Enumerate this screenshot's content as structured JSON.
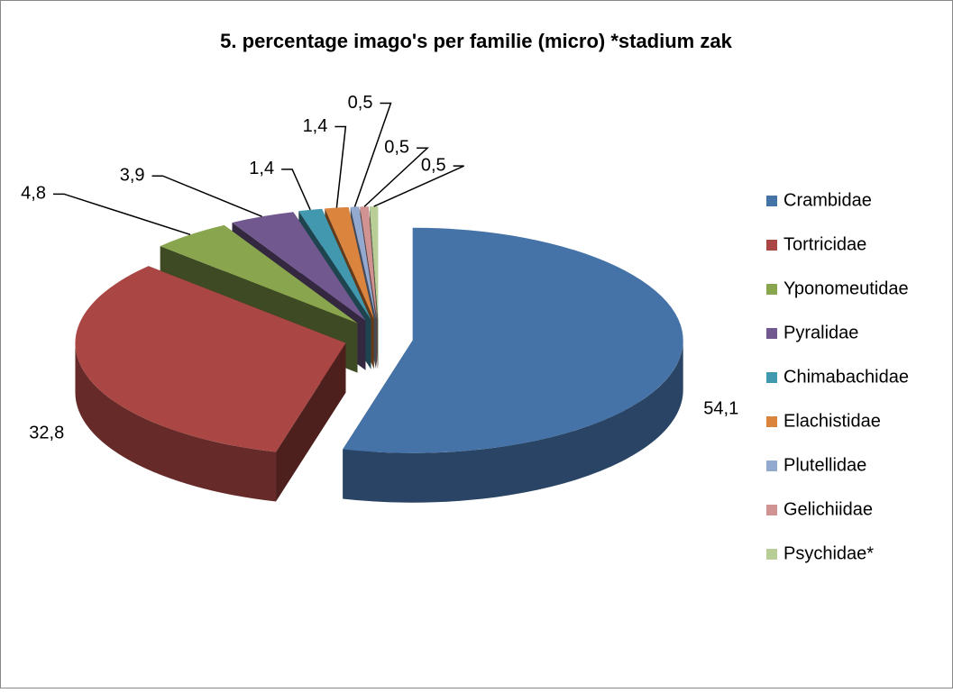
{
  "chart_data": {
    "type": "pie",
    "title": "5. percentage imago's per familie (micro) *stadium zak",
    "categories": [
      "Crambidae",
      "Tortricidae",
      "Yponomeutidae",
      "Pyralidae",
      "Chimabachidae",
      "Elachistidae",
      "Plutellidae",
      "Gelichiidae",
      "Psychidae*"
    ],
    "values": [
      54.1,
      32.8,
      4.8,
      3.9,
      1.4,
      1.4,
      0.5,
      0.5,
      0.5
    ],
    "value_labels": [
      "54,1",
      "32,8",
      "4,8",
      "3,9",
      "1,4",
      "1,4",
      "0,5",
      "0,5",
      "0,5"
    ],
    "colors": [
      "#4572a7",
      "#aa4643",
      "#89a54e",
      "#71588f",
      "#4198af",
      "#db843d",
      "#93a9cf",
      "#d19392",
      "#b9cd96"
    ],
    "legend": "right"
  }
}
